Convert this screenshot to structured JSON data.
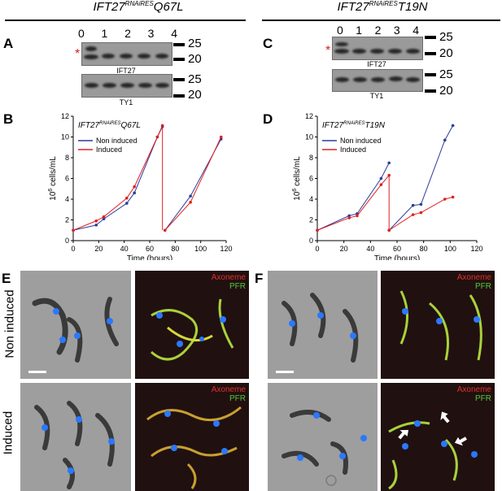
{
  "left_title": {
    "name": "IFT27",
    "sup": "RNAiRES",
    "mut": "Q67L"
  },
  "right_title": {
    "name": "IFT27",
    "sup": "RNAiRES",
    "mut": "T19N"
  },
  "panels": {
    "A": "A",
    "B": "B",
    "C": "C",
    "D": "D",
    "E": "E",
    "F": "F"
  },
  "lanes": [
    "0",
    "1",
    "2",
    "3",
    "4"
  ],
  "markers": {
    "upper": "25",
    "lower": "20"
  },
  "asterisk": "*",
  "blot_labels": {
    "ift27": "IFT27",
    "ty1": "TY1"
  },
  "micro": {
    "row_labels": {
      "non_induced": "Non induced",
      "induced": "Induced"
    },
    "stain_axoneme": "Axoneme",
    "stain_pfr": "PFR"
  },
  "colors": {
    "non_induced": "#2b3d9a",
    "induced": "#e02020",
    "axoneme": "#e0302a",
    "pfr": "#54c83a",
    "asterisk": "#d81e1e"
  },
  "chart_data": [
    {
      "type": "line",
      "title": "IFT27RNAiRESQ67L",
      "inset_title": {
        "name": "IFT27",
        "sup": "RNAiRES",
        "mut": "Q67L"
      },
      "xlabel": "Time (hours)",
      "ylabel": "10⁶ cells/mL",
      "ylabel_parts": {
        "base": "10",
        "exp": "6",
        "rest": " cells/mL"
      },
      "xlim": [
        0,
        120
      ],
      "ylim": [
        0,
        12
      ],
      "xticks": [
        0,
        20,
        40,
        60,
        80,
        100,
        120
      ],
      "yticks": [
        0,
        2,
        4,
        6,
        8,
        10,
        12
      ],
      "legend": "top-left",
      "series": [
        {
          "name": "Non induced",
          "color": "#2b3d9a",
          "segments": [
            [
              [
                0,
                1
              ],
              [
                18,
                1.5
              ],
              [
                24,
                2.1
              ],
              [
                42,
                3.6
              ],
              [
                48,
                4.6
              ],
              [
                66,
                10
              ],
              [
                70,
                11
              ]
            ],
            [
              [
                72,
                1
              ],
              [
                92,
                4.3
              ],
              [
                116,
                9.8
              ]
            ]
          ]
        },
        {
          "name": "Induced",
          "color": "#e02020",
          "segments": [
            [
              [
                0,
                1
              ],
              [
                18,
                1.9
              ],
              [
                24,
                2.3
              ],
              [
                42,
                4.1
              ],
              [
                48,
                5.2
              ],
              [
                66,
                10
              ],
              [
                70,
                11.1
              ]
            ],
            [
              [
                72,
                1
              ],
              [
                92,
                3.7
              ],
              [
                116,
                10
              ]
            ]
          ]
        }
      ],
      "dilutions": [
        {
          "x": 70,
          "from": 11.1,
          "to": 1,
          "color": "#e02020"
        }
      ]
    },
    {
      "type": "line",
      "title": "IFT27RNAiREST19N",
      "inset_title": {
        "name": "IFT27",
        "sup": "RNAiRES",
        "mut": "T19N"
      },
      "xlabel": "Time (hours)",
      "ylabel": "10⁶ cells/mL",
      "ylabel_parts": {
        "base": "10",
        "exp": "6",
        "rest": " cells/mL"
      },
      "xlim": [
        0,
        120
      ],
      "ylim": [
        0,
        12
      ],
      "xticks": [
        0,
        20,
        40,
        60,
        80,
        100,
        120
      ],
      "yticks": [
        0,
        2,
        4,
        6,
        8,
        10,
        12
      ],
      "legend": "top-left",
      "series": [
        {
          "name": "Non induced",
          "color": "#2b3d9a",
          "segments": [
            [
              [
                0,
                1
              ],
              [
                24,
                2.4
              ],
              [
                30,
                2.6
              ],
              [
                48,
                6
              ],
              [
                54,
                7.5
              ]
            ],
            [
              [
                54,
                1
              ],
              [
                72,
                3.4
              ],
              [
                78,
                3.5
              ],
              [
                96,
                9.7
              ],
              [
                102,
                11.1
              ]
            ]
          ]
        },
        {
          "name": "Induced",
          "color": "#e02020",
          "segments": [
            [
              [
                0,
                1
              ],
              [
                24,
                2.2
              ],
              [
                30,
                2.4
              ],
              [
                48,
                5.4
              ],
              [
                54,
                6.3
              ]
            ],
            [
              [
                54,
                1
              ],
              [
                72,
                2.5
              ],
              [
                78,
                2.7
              ],
              [
                96,
                4
              ],
              [
                102,
                4.2
              ]
            ]
          ]
        }
      ],
      "dilutions": [
        {
          "x": 54,
          "from": 6.3,
          "to": 1,
          "color": "#e02020"
        }
      ]
    }
  ]
}
